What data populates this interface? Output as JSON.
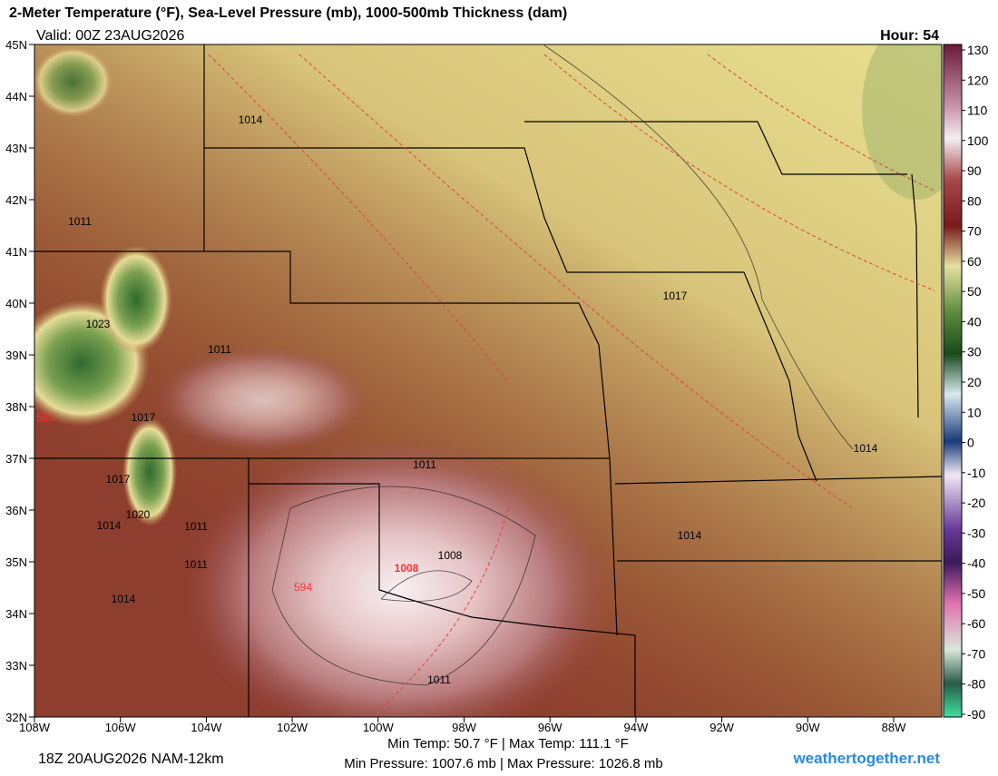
{
  "header": {
    "title": "2-Meter Temperature (°F), Sea-Level Pressure (mb), 1000-500mb Thickness (dam)",
    "valid": "Valid: 00Z 23AUG2026",
    "hour": "Hour: 54"
  },
  "map": {
    "lat_labels": [
      "45N",
      "44N",
      "43N",
      "42N",
      "41N",
      "40N",
      "39N",
      "38N",
      "37N",
      "36N",
      "35N",
      "34N",
      "33N",
      "32N"
    ],
    "lon_labels": [
      "108W",
      "106W",
      "104W",
      "102W",
      "100W",
      "98W",
      "96W",
      "94W",
      "92W",
      "90W",
      "88W"
    ],
    "pressure_labels": [
      "1014",
      "1011",
      "1023",
      "1011",
      "1017",
      "1017",
      "1020",
      "1014",
      "1011",
      "1011",
      "1014",
      "1011",
      "1008",
      "1011",
      "1017",
      "1014",
      "1014"
    ],
    "thickness_labels": [
      "1008",
      "594",
      "588"
    ]
  },
  "colorbar": {
    "ticks": [
      130,
      120,
      110,
      100,
      90,
      80,
      70,
      60,
      50,
      40,
      30,
      20,
      10,
      0,
      -10,
      -20,
      -30,
      -40,
      -50,
      -60,
      -70,
      -80,
      -90
    ]
  },
  "footer": {
    "run": "18Z 20AUG2026 NAM-12km",
    "temps": "Min Temp:  50.7 °F | Max Temp: 111.1 °F",
    "pressures": "Min Pressure: 1007.6 mb | Max Pressure: 1026.8 mb",
    "site": "weathertogether.net"
  }
}
